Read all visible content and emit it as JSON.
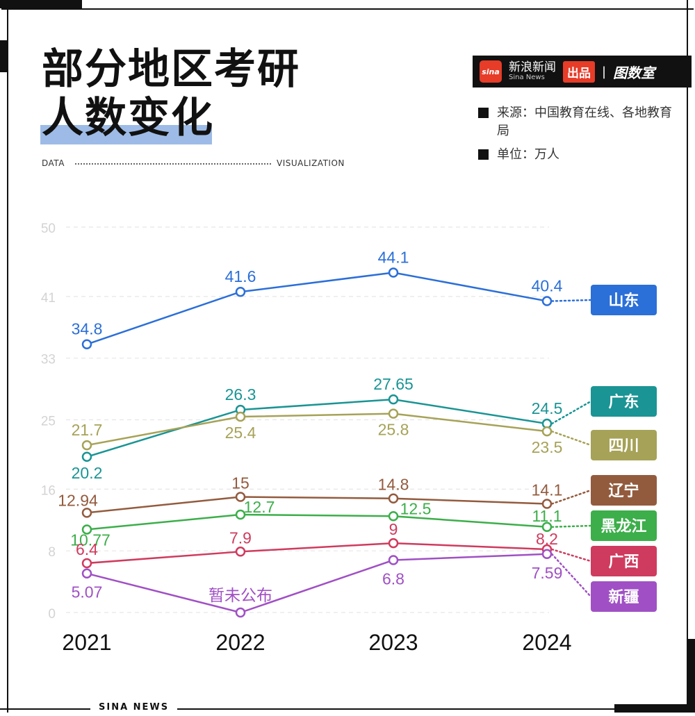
{
  "header": {
    "title_line1": "部分地区考研",
    "title_line2": "人数变化",
    "data_label": "DATA",
    "viz_label": "VISUALIZATION"
  },
  "brand": {
    "logo_text": "sina",
    "name_cn": "新浪新闻",
    "name_en": "Sina News",
    "produce": "出品",
    "separator": "|",
    "room": "图数室"
  },
  "meta": {
    "source": "来源：中国教育在线、各地教育局",
    "unit": "单位：万人"
  },
  "footer": {
    "text": "SINA NEWS"
  },
  "chart_data": {
    "type": "line",
    "title": "部分地区考研人数变化",
    "x": [
      "2021",
      "2022",
      "2023",
      "2024"
    ],
    "yticks": [
      "0",
      "8",
      "16",
      "25",
      "33",
      "41",
      "50"
    ],
    "ylim": [
      0,
      50
    ],
    "grid": true,
    "legend": "right",
    "series": [
      {
        "name": "山东",
        "color": "#2b6fd8",
        "values": [
          34.8,
          41.6,
          44.1,
          40.4
        ],
        "labels": [
          "34.8",
          "41.6",
          "44.1",
          "40.4"
        ]
      },
      {
        "name": "广东",
        "color": "#1a9494",
        "values": [
          20.2,
          26.3,
          27.65,
          24.5
        ],
        "labels": [
          "20.2",
          "26.3",
          "27.65",
          "24.5"
        ]
      },
      {
        "name": "四川",
        "color": "#a6a257",
        "values": [
          21.7,
          25.4,
          25.8,
          23.5
        ],
        "labels": [
          "21.7",
          "25.4",
          "25.8",
          "23.5"
        ]
      },
      {
        "name": "辽宁",
        "color": "#935b3e",
        "values": [
          12.94,
          15,
          14.8,
          14.1
        ],
        "labels": [
          "12.94",
          "15",
          "14.8",
          "14.1"
        ]
      },
      {
        "name": "黑龙江",
        "color": "#3cae4a",
        "values": [
          10.77,
          12.7,
          12.5,
          11.1
        ],
        "labels": [
          "10.77",
          "12.7",
          "12.5",
          "11.1"
        ]
      },
      {
        "name": "广西",
        "color": "#cf3b5e",
        "values": [
          6.4,
          7.9,
          9,
          8.2
        ],
        "labels": [
          "6.4",
          "7.9",
          "9",
          "8.2"
        ]
      },
      {
        "name": "新疆",
        "color": "#a050c4",
        "values": [
          5.07,
          null,
          6.8,
          7.59
        ],
        "labels": [
          "5.07",
          "暂未公布",
          "6.8",
          "7.59"
        ]
      }
    ]
  }
}
